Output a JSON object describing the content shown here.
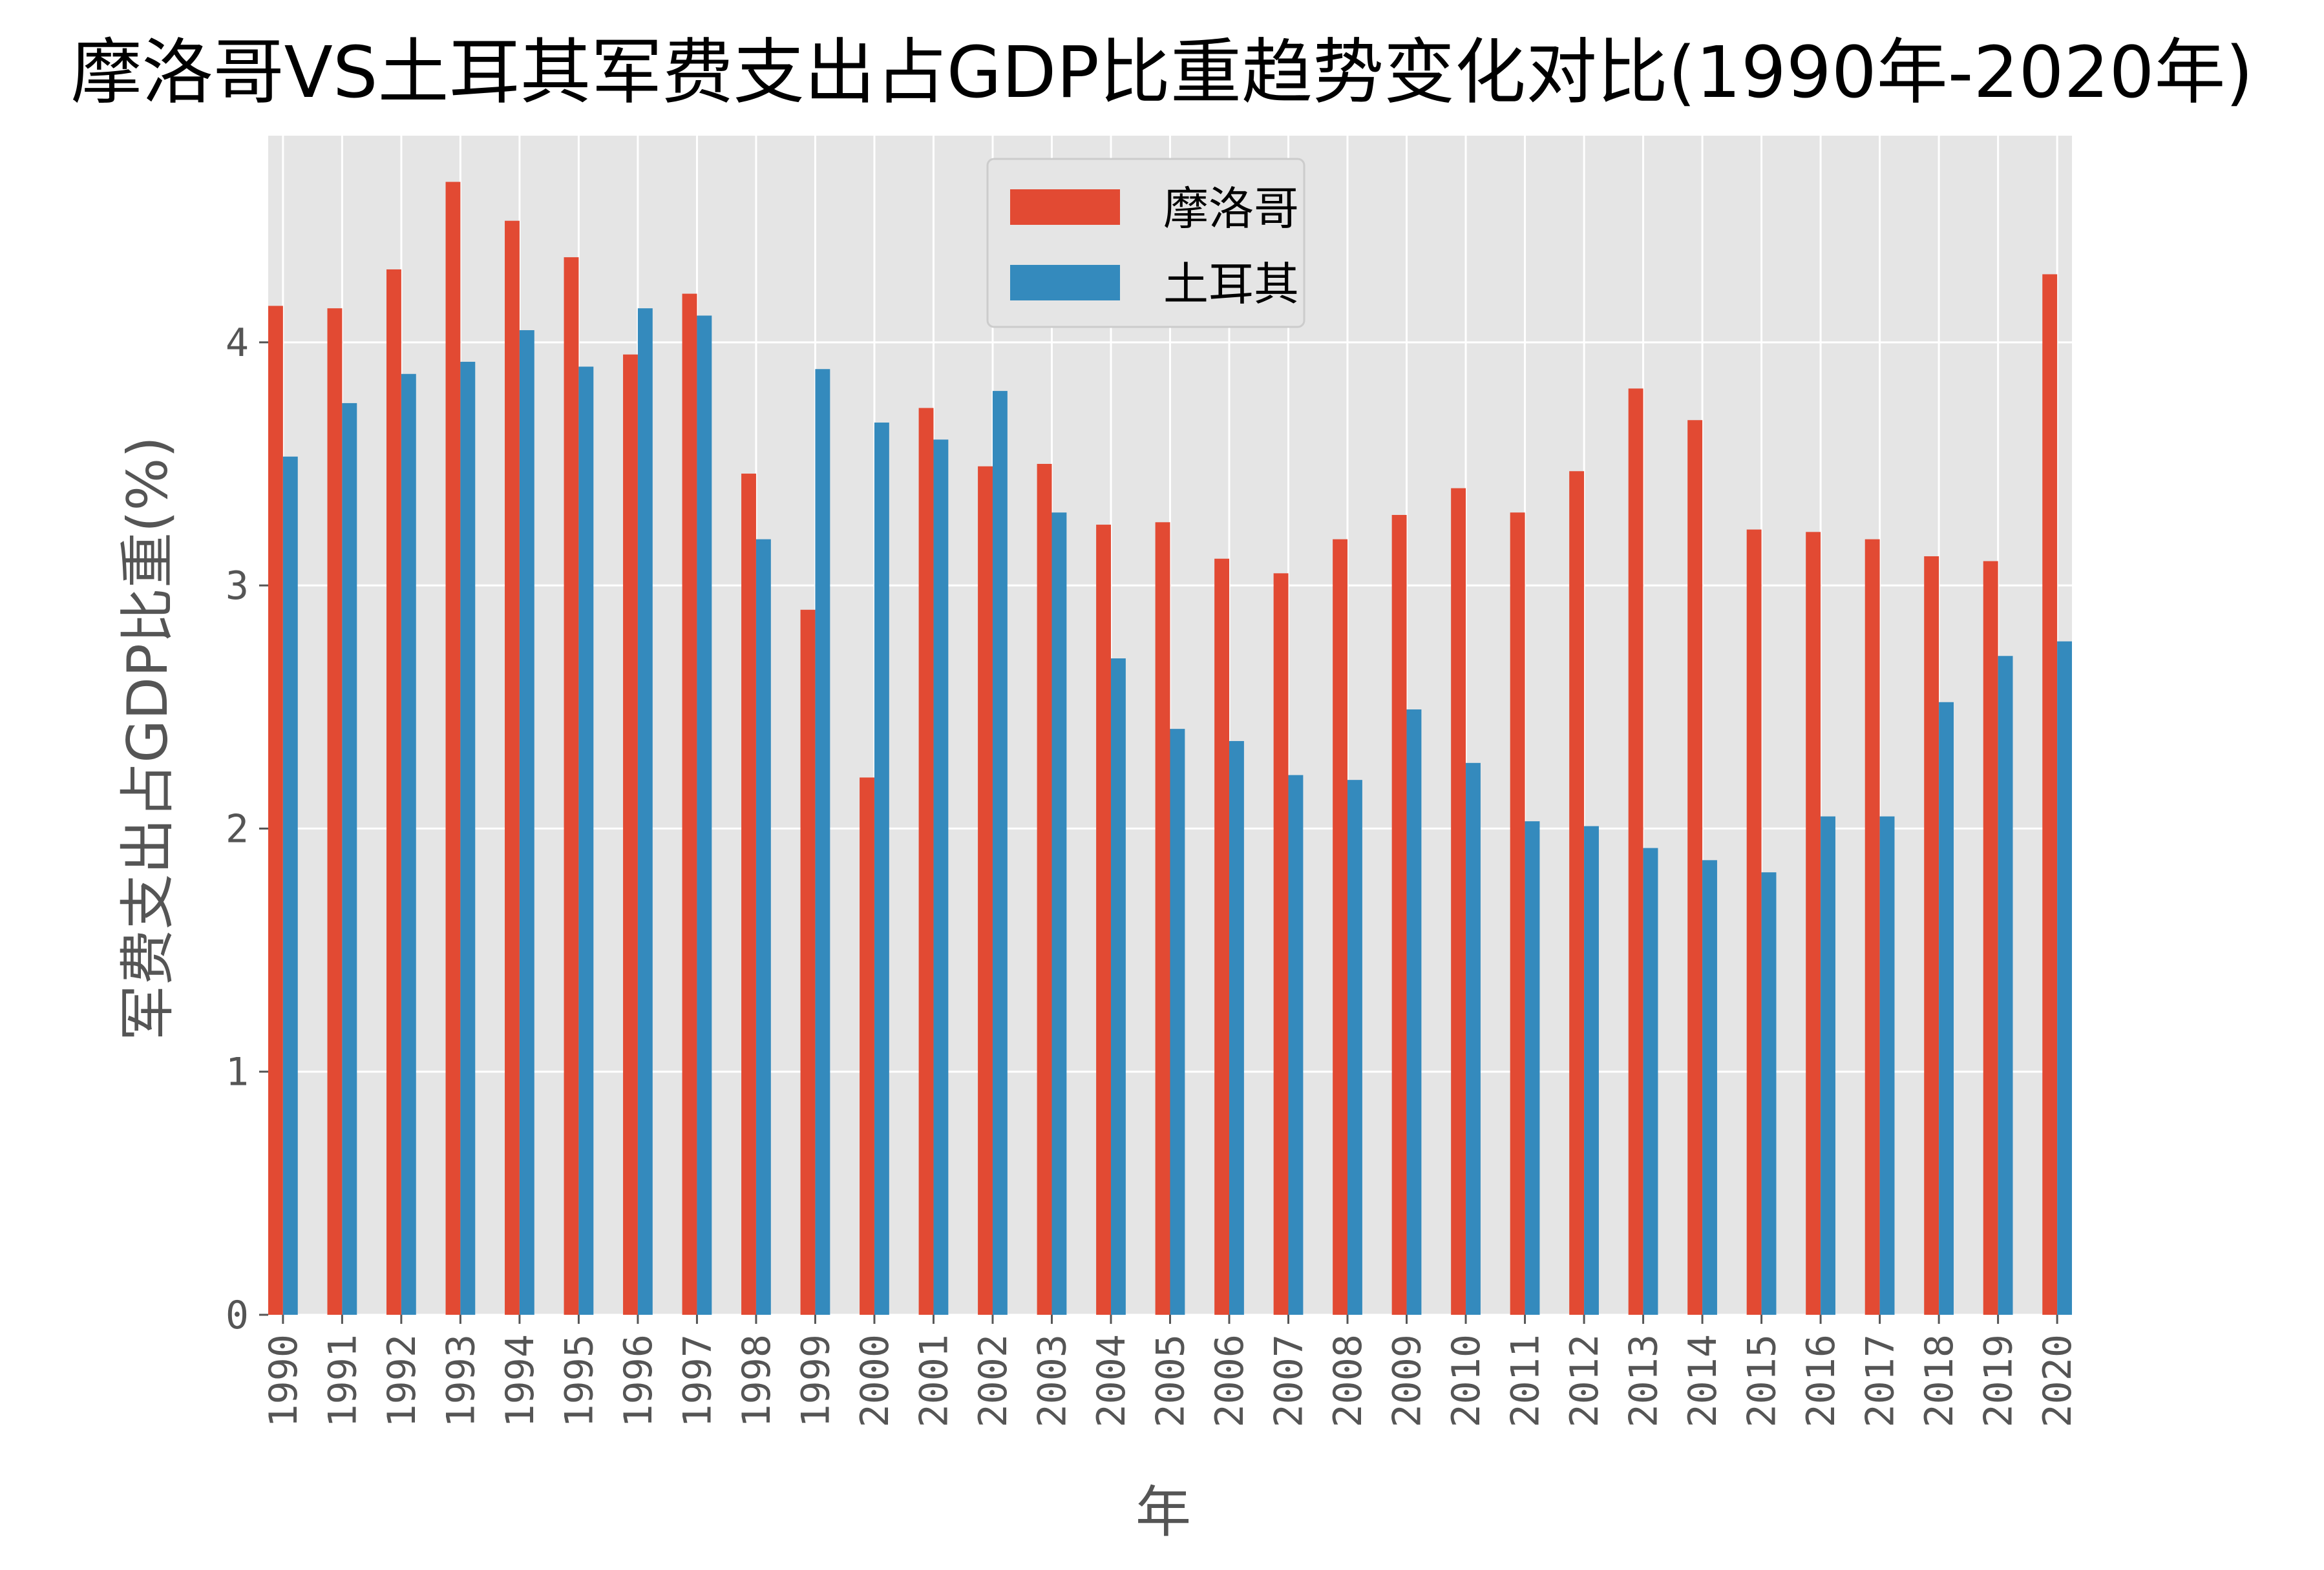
{
  "chart_data": {
    "type": "bar",
    "title": "摩洛哥VS土耳其军费支出占GDP比重趋势变化对比(1990年-2020年)",
    "xlabel": "年",
    "ylabel": "军费支出占GDP比重(%)",
    "ylim": [
      0,
      4.85
    ],
    "yticks": [
      0,
      1,
      2,
      3,
      4
    ],
    "grid": true,
    "legend_position": "top-center",
    "categories": [
      "1990",
      "1991",
      "1992",
      "1993",
      "1994",
      "1995",
      "1996",
      "1997",
      "1998",
      "1999",
      "2000",
      "2001",
      "2002",
      "2003",
      "2004",
      "2005",
      "2006",
      "2007",
      "2008",
      "2009",
      "2010",
      "2011",
      "2012",
      "2013",
      "2014",
      "2015",
      "2016",
      "2017",
      "2018",
      "2019",
      "2020"
    ],
    "series": [
      {
        "name": "摩洛哥",
        "color": "#E24A33",
        "values": [
          4.15,
          4.14,
          4.3,
          4.66,
          4.5,
          4.35,
          3.95,
          4.2,
          3.46,
          2.9,
          2.21,
          3.73,
          3.49,
          3.5,
          3.25,
          3.26,
          3.11,
          3.05,
          3.19,
          3.29,
          3.4,
          3.3,
          3.47,
          3.81,
          3.68,
          3.23,
          3.22,
          3.19,
          3.12,
          3.1,
          4.28
        ]
      },
      {
        "name": "土耳其",
        "color": "#348ABD",
        "values": [
          3.53,
          3.75,
          3.87,
          3.92,
          4.05,
          3.9,
          4.14,
          4.11,
          3.19,
          3.89,
          3.67,
          3.6,
          3.8,
          3.3,
          2.7,
          2.41,
          2.36,
          2.22,
          2.2,
          2.49,
          2.27,
          2.03,
          2.01,
          1.92,
          1.87,
          1.82,
          2.05,
          2.05,
          2.52,
          2.71,
          2.77
        ]
      }
    ]
  }
}
